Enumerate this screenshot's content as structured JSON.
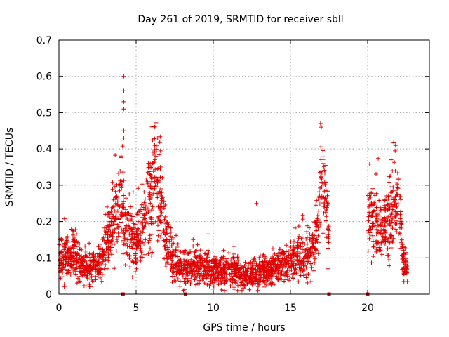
{
  "chart_data": {
    "type": "scatter",
    "title": "Day 261 of 2019, SRMTID for receiver sbll",
    "xlabel": "GPS time / hours",
    "ylabel": "SRMTID / TECUs",
    "xlim": [
      0,
      24
    ],
    "ylim": [
      0,
      0.7
    ],
    "x_ticks": [
      0,
      5,
      10,
      15,
      20
    ],
    "x_tick_labels": [
      "0",
      "5",
      "10",
      "15",
      "20"
    ],
    "y_ticks": [
      0,
      0.1,
      0.2,
      0.3,
      0.4,
      0.5,
      0.6,
      0.7
    ],
    "y_tick_labels": [
      "0",
      "0.1",
      "0.2",
      "0.3",
      "0.4",
      "0.5",
      "0.6",
      "0.7"
    ],
    "grid": true,
    "marker": "+",
    "color": "#e00000",
    "series_envelope": {
      "description": "approximate median SRMTID level of the dense point cloud vs GPS time",
      "x": [
        0.0,
        0.5,
        1.0,
        1.5,
        2.0,
        2.5,
        3.0,
        3.3,
        3.6,
        4.0,
        4.2,
        4.5,
        5.0,
        5.5,
        6.0,
        6.3,
        6.6,
        7.0,
        7.5,
        8.0,
        9.0,
        10.0,
        11.0,
        12.0,
        13.0,
        14.0,
        15.0,
        16.0,
        16.5,
        16.8,
        17.0,
        17.3,
        17.5,
        20.0,
        20.5,
        21.0,
        21.5,
        22.0,
        22.3,
        22.6
      ],
      "y": [
        0.1,
        0.1,
        0.1,
        0.08,
        0.07,
        0.08,
        0.12,
        0.18,
        0.22,
        0.25,
        0.2,
        0.15,
        0.14,
        0.2,
        0.3,
        0.33,
        0.25,
        0.15,
        0.1,
        0.07,
        0.08,
        0.06,
        0.07,
        0.05,
        0.06,
        0.07,
        0.09,
        0.11,
        0.12,
        0.2,
        0.3,
        0.25,
        0.15,
        0.2,
        0.2,
        0.18,
        0.22,
        0.25,
        0.1,
        0.06
      ]
    },
    "spikes": [
      {
        "x": 4.2,
        "y": 0.6
      },
      {
        "x": 4.2,
        "y": 0.56
      },
      {
        "x": 4.2,
        "y": 0.53
      },
      {
        "x": 4.2,
        "y": 0.51
      },
      {
        "x": 4.2,
        "y": 0.45
      },
      {
        "x": 4.2,
        "y": 0.43
      },
      {
        "x": 6.3,
        "y": 0.43
      },
      {
        "x": 6.2,
        "y": 0.41
      },
      {
        "x": 16.95,
        "y": 0.47
      },
      {
        "x": 17.0,
        "y": 0.46
      },
      {
        "x": 12.8,
        "y": 0.25
      },
      {
        "x": 21.6,
        "y": 0.34
      },
      {
        "x": 21.8,
        "y": 0.34
      }
    ],
    "zero_markers_x": [
      4.15,
      8.2,
      17.5,
      20.0
    ]
  }
}
